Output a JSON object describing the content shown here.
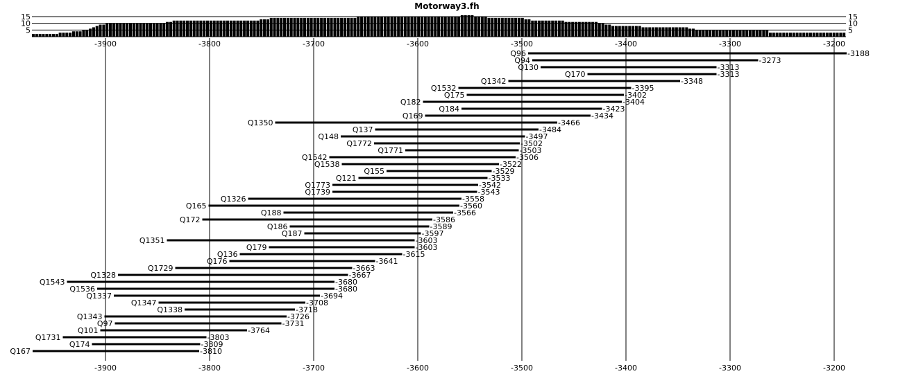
{
  "chart_data": {
    "type": "bar",
    "title": "Motorway3.fh",
    "x_ticks": [
      -3900,
      -3800,
      -3700,
      -3600,
      -3500,
      -3400,
      -3300,
      -3200
    ],
    "xlim": [
      -3970,
      -3190
    ],
    "histogram": {
      "y_ticks": [
        5,
        10,
        15
      ],
      "ylim": [
        0,
        16
      ],
      "values": [
        2,
        2,
        2,
        2,
        2,
        2,
        2,
        2,
        3,
        3,
        3,
        3,
        4,
        4,
        4,
        5,
        5,
        6,
        7,
        8,
        9,
        9,
        10,
        10,
        10,
        10,
        10,
        10,
        10,
        10,
        10,
        10,
        10,
        10,
        10,
        10,
        10,
        10,
        10,
        10,
        11,
        11,
        12,
        12,
        12,
        12,
        12,
        12,
        12,
        12,
        12,
        12,
        12,
        12,
        12,
        12,
        12,
        12,
        12,
        12,
        12,
        12,
        12,
        12,
        12,
        12,
        12,
        12,
        13,
        13,
        13,
        14,
        14,
        14,
        14,
        14,
        14,
        14,
        14,
        14,
        14,
        14,
        14,
        14,
        14,
        14,
        14,
        14,
        14,
        14,
        14,
        14,
        14,
        14,
        14,
        14,
        14,
        15,
        15,
        15,
        15,
        15,
        15,
        15,
        15,
        15,
        15,
        15,
        15,
        15,
        15,
        15,
        15,
        15,
        15,
        15,
        15,
        15,
        15,
        15,
        15,
        15,
        15,
        15,
        15,
        15,
        15,
        15,
        16,
        16,
        16,
        16,
        15,
        15,
        15,
        15,
        14,
        14,
        14,
        14,
        14,
        14,
        14,
        14,
        14,
        14,
        14,
        13,
        13,
        12,
        12,
        12,
        12,
        12,
        12,
        12,
        12,
        12,
        12,
        11,
        11,
        11,
        11,
        11,
        11,
        11,
        11,
        11,
        11,
        10,
        10,
        9,
        9,
        8,
        8,
        8,
        8,
        8,
        8,
        8,
        8,
        8,
        7,
        7,
        7,
        7,
        7,
        7,
        7,
        7,
        7,
        7,
        7,
        7,
        7,
        7,
        6,
        6,
        5,
        5,
        5,
        5,
        5,
        5,
        5,
        5,
        5,
        5,
        5,
        5,
        5,
        5,
        5,
        5,
        5,
        5,
        5,
        5,
        5,
        5,
        3,
        3,
        3,
        3,
        3,
        3,
        3,
        3,
        3,
        3,
        3,
        3,
        3,
        3,
        3,
        3,
        3,
        3,
        3,
        3,
        3,
        3,
        3
      ]
    },
    "intervals": [
      {
        "label": "Q96",
        "start": -3494,
        "end": -3188,
        "end_label": "-3188"
      },
      {
        "label": "Q94",
        "start": -3490,
        "end": -3273,
        "end_label": "-3273"
      },
      {
        "label": "Q130",
        "start": -3482,
        "end": -3313,
        "end_label": "-3313"
      },
      {
        "label": "Q170",
        "start": -3437,
        "end": -3313,
        "end_label": "-3313"
      },
      {
        "label": "Q1342",
        "start": -3513,
        "end": -3348,
        "end_label": "-3348"
      },
      {
        "label": "Q1532",
        "start": -3561,
        "end": -3395,
        "end_label": "-3395"
      },
      {
        "label": "Q175",
        "start": -3553,
        "end": -3402,
        "end_label": "-3402"
      },
      {
        "label": "Q182",
        "start": -3595,
        "end": -3404,
        "end_label": "-3404"
      },
      {
        "label": "Q184",
        "start": -3558,
        "end": -3423,
        "end_label": "-3423"
      },
      {
        "label": "Q169",
        "start": -3593,
        "end": -3434,
        "end_label": "-3434"
      },
      {
        "label": "Q1350",
        "start": -3737,
        "end": -3466,
        "end_label": "-3466"
      },
      {
        "label": "Q137",
        "start": -3641,
        "end": -3484,
        "end_label": "-3484"
      },
      {
        "label": "Q148",
        "start": -3674,
        "end": -3497,
        "end_label": "-3497"
      },
      {
        "label": "Q1772",
        "start": -3642,
        "end": -3502,
        "end_label": "-3502"
      },
      {
        "label": "Q1771",
        "start": -3612,
        "end": -3503,
        "end_label": "-3503"
      },
      {
        "label": "Q1542",
        "start": -3685,
        "end": -3506,
        "end_label": "-3506"
      },
      {
        "label": "Q1538",
        "start": -3673,
        "end": -3522,
        "end_label": "-3522"
      },
      {
        "label": "Q155",
        "start": -3630,
        "end": -3529,
        "end_label": "-3529"
      },
      {
        "label": "Q121",
        "start": -3657,
        "end": -3533,
        "end_label": "-3533"
      },
      {
        "label": "Q1773",
        "start": -3682,
        "end": -3542,
        "end_label": "-3542"
      },
      {
        "label": "Q1739",
        "start": -3682,
        "end": -3543,
        "end_label": "-3543"
      },
      {
        "label": "Q1326",
        "start": -3763,
        "end": -3558,
        "end_label": "-3558"
      },
      {
        "label": "Q165",
        "start": -3801,
        "end": -3560,
        "end_label": "-3560"
      },
      {
        "label": "Q188",
        "start": -3729,
        "end": -3566,
        "end_label": "-3566"
      },
      {
        "label": "Q172",
        "start": -3807,
        "end": -3586,
        "end_label": "-3586"
      },
      {
        "label": "Q186",
        "start": -3723,
        "end": -3589,
        "end_label": "-3589"
      },
      {
        "label": "Q187",
        "start": -3709,
        "end": -3597,
        "end_label": "-3597"
      },
      {
        "label": "Q1351",
        "start": -3841,
        "end": -3603,
        "end_label": "-3603"
      },
      {
        "label": "Q179",
        "start": -3743,
        "end": -3603,
        "end_label": "-3603"
      },
      {
        "label": "Q136",
        "start": -3771,
        "end": -3615,
        "end_label": "-3615"
      },
      {
        "label": "Q176",
        "start": -3781,
        "end": -3641,
        "end_label": "-3641"
      },
      {
        "label": "Q1729",
        "start": -3833,
        "end": -3663,
        "end_label": "-3663"
      },
      {
        "label": "Q1328",
        "start": -3888,
        "end": -3667,
        "end_label": "-3667"
      },
      {
        "label": "Q1543",
        "start": -3937,
        "end": -3680,
        "end_label": "-3680"
      },
      {
        "label": "Q1536",
        "start": -3908,
        "end": -3680,
        "end_label": "-3680"
      },
      {
        "label": "Q1337",
        "start": -3892,
        "end": -3694,
        "end_label": "-3694"
      },
      {
        "label": "Q1347",
        "start": -3849,
        "end": -3708,
        "end_label": "-3708"
      },
      {
        "label": "Q1338",
        "start": -3824,
        "end": -3718,
        "end_label": "-3718"
      },
      {
        "label": "Q1343",
        "start": -3901,
        "end": -3726,
        "end_label": "-3726"
      },
      {
        "label": "Q97",
        "start": -3891,
        "end": -3731,
        "end_label": "-3731"
      },
      {
        "label": "Q101",
        "start": -3905,
        "end": -3764,
        "end_label": "-3764"
      },
      {
        "label": "Q1731",
        "start": -3941,
        "end": -3803,
        "end_label": "-3803"
      },
      {
        "label": "Q174",
        "start": -3913,
        "end": -3809,
        "end_label": "-3809"
      },
      {
        "label": "Q167",
        "start": -3970,
        "end": -3810,
        "end_label": "-3810"
      }
    ]
  }
}
